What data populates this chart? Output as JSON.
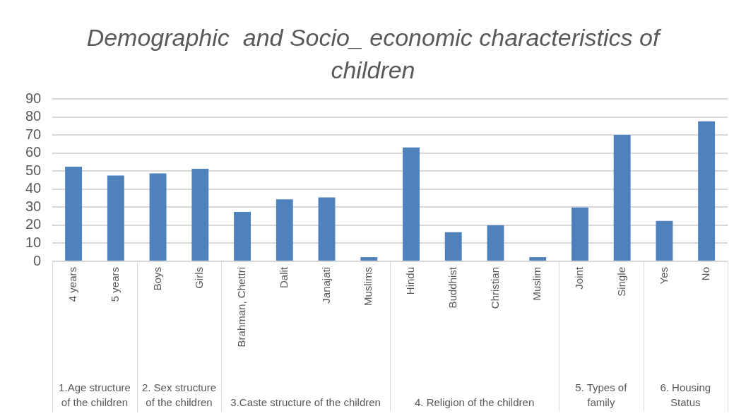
{
  "chart_data": {
    "type": "bar",
    "title": "Demographic  and Socio_ economic characteristics of children",
    "categories": [
      "4 years",
      "5 years",
      "Boys",
      "Girls",
      "Brahman, Chettri",
      "Dalit",
      "Janajati",
      "Muslims",
      "Hindu",
      "Buddhist",
      "Christian",
      "Muslim",
      "Joint",
      "Single",
      "Yes",
      "No"
    ],
    "values": [
      52.4,
      47.5,
      48.7,
      51.3,
      27.4,
      34.3,
      35.4,
      2.3,
      63.1,
      16.1,
      20.0,
      2.3,
      29.8,
      70.0,
      22.4,
      77.6
    ],
    "color": "#4f81bd",
    "ylim": [
      0,
      90
    ],
    "yticks": [
      0,
      10,
      20,
      30,
      40,
      50,
      60,
      70,
      80,
      90
    ],
    "grid": "y",
    "legend": false,
    "annotations": [
      "1.Age structure of the children",
      "2. Sex structure of the children",
      "3.Caste structure of the children",
      "4. Religion of the children",
      "5. Types of family",
      "6. Housing Status"
    ]
  }
}
